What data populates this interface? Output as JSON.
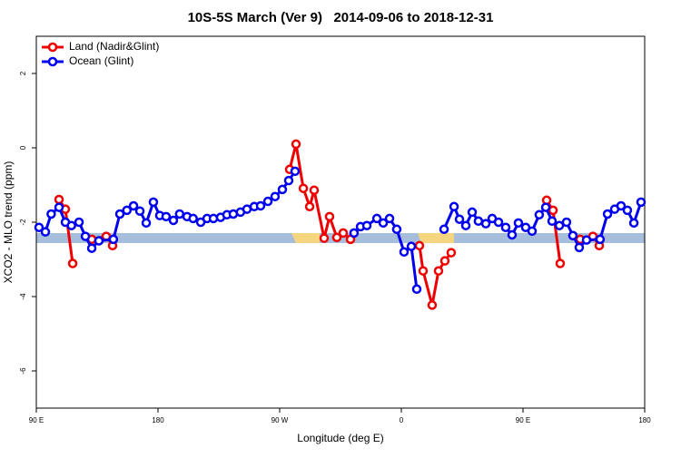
{
  "chart_data": {
    "type": "line",
    "title": "10S-5S March (Ver 9)   2014-09-06 to 2018-12-31",
    "x_label": "Longitude (deg E)",
    "y_label": "XCO2 - MLO trend (ppm)",
    "xlim": [
      90,
      540
    ],
    "xticks": [
      {
        "value": 90,
        "label": "90 E"
      },
      {
        "value": 180,
        "label": "180"
      },
      {
        "value": 270,
        "label": "90 W"
      },
      {
        "value": 360,
        "label": "0"
      },
      {
        "value": 450,
        "label": "90 E"
      },
      {
        "value": 540,
        "label": "180"
      }
    ],
    "ylim": [
      -7,
      3
    ],
    "yticks": [
      -6,
      -4,
      -2,
      0,
      2
    ],
    "legend": "top-left",
    "series": [
      {
        "name": "Land (Nadir&Glint)",
        "color": "#ee0000",
        "x": [
          106.8,
          111.5,
          116.9,
          124,
          131,
          141.7,
          146.4,
          200,
          277.4,
          282.1,
          287.5,
          292.2,
          295.5,
          302.9,
          306.9,
          312.3,
          317,
          322.4,
          350,
          373.4,
          376.1,
          382.8,
          387.5,
          392.2,
          396.9,
          430,
          467.5,
          472.2,
          477.5,
          485,
          492.3,
          501.7,
          506.4
        ],
        "values": [
          -1.39,
          -1.65,
          -3.11,
          null,
          -2.46,
          -2.38,
          -2.63,
          null,
          -0.58,
          0.1,
          -1.09,
          -1.58,
          -1.14,
          -2.43,
          -1.85,
          -2.41,
          -2.29,
          -2.46,
          null,
          -2.63,
          -3.31,
          -4.23,
          -3.31,
          -3.04,
          -2.82,
          null,
          -1.41,
          -1.68,
          -3.11,
          null,
          -2.46,
          -2.38,
          -2.63
        ]
      },
      {
        "name": "Ocean (Glint)",
        "color": "#0000ee",
        "x": [
          92,
          96.7,
          101,
          106.8,
          111.5,
          116,
          121.6,
          126.3,
          131,
          136.3,
          147,
          151.8,
          157,
          161.9,
          166.6,
          171.3,
          176.6,
          181.3,
          186,
          191.4,
          196,
          201.5,
          206,
          211.6,
          216.3,
          221,
          226.3,
          231,
          235.7,
          241,
          245.8,
          251.2,
          255.9,
          261.3,
          266.6,
          272,
          276.7,
          281.4,
          300,
          325,
          329.8,
          334.5,
          341.9,
          346.6,
          351.3,
          356.6,
          362,
          367.4,
          371.4,
          380,
          391.6,
          399,
          403,
          407.7,
          412.4,
          417,
          422.5,
          427.2,
          431.9,
          437.2,
          441.9,
          446.6,
          452,
          456.7,
          462,
          466.8,
          471.5,
          476.9,
          482.2,
          486.9,
          491.6,
          497,
          507,
          512.5,
          517.8,
          522.5,
          527.2,
          532,
          537.3
        ],
        "values": [
          -2.14,
          -2.26,
          -1.78,
          -1.6,
          -2.0,
          -2.09,
          -2.0,
          -2.38,
          -2.7,
          -2.5,
          -2.46,
          -1.78,
          -1.68,
          -1.56,
          -1.7,
          -2.02,
          -1.46,
          -1.82,
          -1.85,
          -1.95,
          -1.78,
          -1.85,
          -1.9,
          -2.0,
          -1.9,
          -1.9,
          -1.87,
          -1.8,
          -1.78,
          -1.73,
          -1.65,
          -1.58,
          -1.56,
          -1.44,
          -1.31,
          -1.12,
          -0.88,
          -0.63,
          null,
          -2.29,
          -2.12,
          -2.09,
          -1.9,
          -2.02,
          -1.9,
          -2.19,
          -2.8,
          -2.65,
          -3.8,
          null,
          -2.19,
          -1.58,
          -1.92,
          -2.09,
          -1.73,
          -1.97,
          -2.04,
          -1.9,
          -2.0,
          -2.14,
          -2.34,
          -2.02,
          -2.14,
          -2.24,
          -1.8,
          -1.6,
          -1.97,
          -2.09,
          -2.0,
          -2.36,
          -2.68,
          -2.48,
          -2.46,
          -1.78,
          -1.65,
          -1.56,
          -1.68,
          -2.02,
          -1.46
        ]
      }
    ]
  }
}
